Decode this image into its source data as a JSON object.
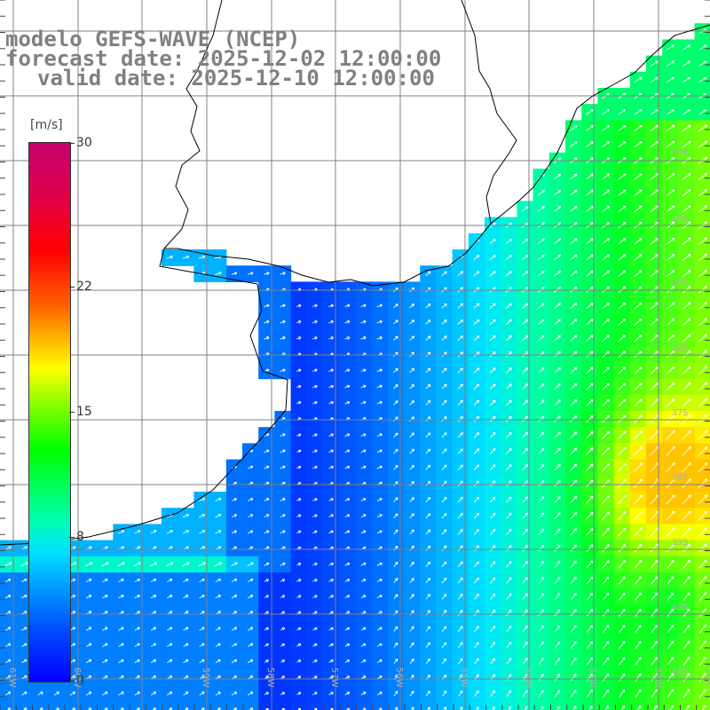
{
  "title": {
    "model": "modelo GEFS-WAVE (NCEP)",
    "forecast": "forecast date: 2025-12-02 12:00:00",
    "valid": "valid date: 2025-12-10 12:00:00"
  },
  "colorbar": {
    "unit": "[m/s]",
    "min": 0,
    "max": 30,
    "ticks": [
      "30",
      "22",
      "15",
      "8",
      "0"
    ],
    "colors": [
      "#0000ff",
      "#00a0ff",
      "#00ffff",
      "#00ff00",
      "#ffff00",
      "#ff6000",
      "#ff0000",
      "#c8006e"
    ]
  },
  "map": {
    "lat_labels": [
      "33S",
      "34S",
      "35S",
      "36S",
      "37S",
      "38S",
      "39S",
      "40S",
      "41S"
    ],
    "lon_labels": [
      "61W",
      "60W",
      "59W",
      "58W",
      "57W",
      "56W",
      "55W",
      "54W",
      "53W",
      "52W",
      "51W"
    ],
    "ocean_color": "#00ff44",
    "arrow_color": "#ffffff",
    "grid_color": "#808080",
    "coast_color": "#000000"
  }
}
